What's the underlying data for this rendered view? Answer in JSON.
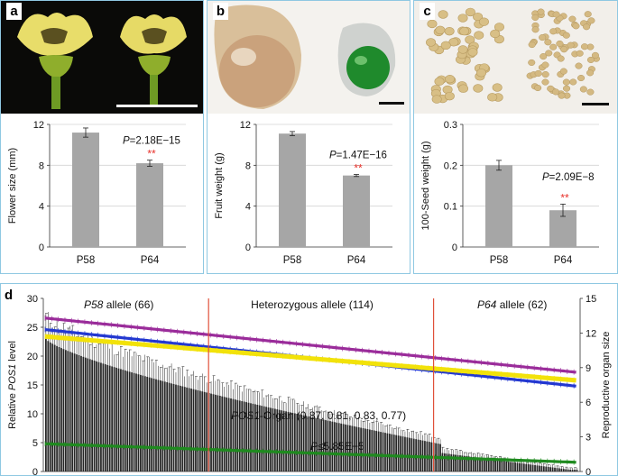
{
  "panels": {
    "a": {
      "letter": "a",
      "photo": "yellow-flowers-photo"
    },
    "b": {
      "letter": "b",
      "photo": "fruits-photo"
    },
    "c": {
      "letter": "c",
      "photo": "seeds-photo"
    },
    "d": {
      "letter": "d"
    }
  },
  "chart_data": [
    {
      "type": "bar",
      "panel": "a",
      "categories": [
        "P58",
        "P64"
      ],
      "values": [
        11.2,
        8.2
      ],
      "errors": [
        0.45,
        0.3
      ],
      "ylabel": "Flower size (mm)",
      "ylim": [
        0,
        12
      ],
      "yticks": [
        "0",
        "4",
        "8",
        "12"
      ],
      "pvalue": "=2.18E−15",
      "pvalue_italic": "P",
      "significance": "**",
      "colors": {
        "bar": "#a6a6a6",
        "star": "#e8312a"
      }
    },
    {
      "type": "bar",
      "panel": "b",
      "categories": [
        "P58",
        "P64"
      ],
      "values": [
        11.1,
        7.0
      ],
      "errors": [
        0.2,
        0.1
      ],
      "ylabel": "Fruit weight (g)",
      "ylim": [
        0,
        12
      ],
      "yticks": [
        "0",
        "4",
        "8",
        "12"
      ],
      "pvalue": "=1.47E−16",
      "pvalue_italic": "P",
      "significance": "**",
      "colors": {
        "bar": "#a6a6a6",
        "star": "#e8312a"
      }
    },
    {
      "type": "bar",
      "panel": "c",
      "categories": [
        "P58",
        "P64"
      ],
      "values": [
        0.2,
        0.09
      ],
      "errors": [
        0.012,
        0.015
      ],
      "ylabel": "100-Seed weight (g)",
      "ylim": [
        0,
        0.3
      ],
      "yticks": [
        "0",
        "0.1",
        "0.2",
        "0.3"
      ],
      "pvalue": "=2.09E−8",
      "pvalue_italic": "P",
      "significance": "**",
      "colors": {
        "bar": "#a6a6a6",
        "star": "#e8312a"
      }
    },
    {
      "type": "bar",
      "panel": "d",
      "n_lines": 242,
      "ylabel_left_prefix": "Relative ",
      "ylabel_left_italic": "POS1",
      "ylabel_left_suffix": " level",
      "ylabel_right": "Reproductive organ size",
      "ylim_left": [
        0,
        30
      ],
      "ylim_right": [
        0,
        15
      ],
      "yticks_left": [
        "0",
        "5",
        "10",
        "15",
        "20",
        "25",
        "30"
      ],
      "yticks_right": [
        "0",
        "3",
        "6",
        "9",
        "12",
        "15"
      ],
      "groups": [
        {
          "italic": "P58",
          "label": " allele (66)",
          "count": 66
        },
        {
          "italic": "",
          "label": "Heterozygous allele (114)",
          "count": 114
        },
        {
          "italic": "P64",
          "label": " allele (62)",
          "count": 62
        }
      ],
      "annotation_italic": "POS1",
      "annotation_text": "-Organ (0.87, 0.81, 0.83, 0.77)",
      "pvalue_italic": "P",
      "pvalue": "≤5.85E−5",
      "pos1_level_start": 23.0,
      "pos1_level_end": 0.2,
      "series": [
        {
          "name": "purple",
          "color": "#9a2c9a",
          "start": 13.3,
          "end": 8.6
        },
        {
          "name": "blue",
          "color": "#2338d0",
          "start": 12.3,
          "end": 7.4
        },
        {
          "name": "yellow",
          "color": "#f2e20a",
          "start": 11.7,
          "end": 7.9
        },
        {
          "name": "green",
          "color": "#1f8a1f",
          "start": 2.4,
          "end": 0.8
        }
      ],
      "colors": {
        "bar": "#262626",
        "divider": "#e0503a"
      }
    }
  ]
}
